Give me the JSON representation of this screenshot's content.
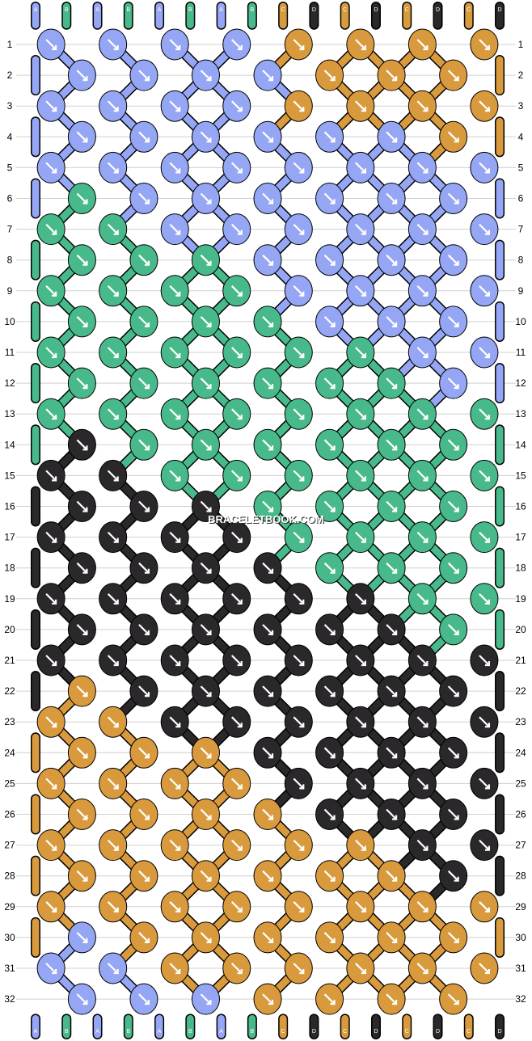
{
  "watermark": "BRACELETBOOK.COM",
  "colors": {
    "A": "#95a6f4",
    "B": "#48b98b",
    "C": "#d99a3e",
    "D": "#2a282a"
  },
  "strands": {
    "top": [
      "A",
      "B",
      "A",
      "B",
      "A",
      "B",
      "A",
      "B",
      "C",
      "D",
      "C",
      "D",
      "C",
      "D",
      "C",
      "D"
    ],
    "bottom": [
      "A",
      "B",
      "A",
      "B",
      "A",
      "B",
      "A",
      "B",
      "C",
      "D",
      "C",
      "D",
      "C",
      "D",
      "C",
      "D"
    ]
  },
  "row_numbers": [
    "1",
    "2",
    "3",
    "4",
    "5",
    "6",
    "7",
    "8",
    "9",
    "10",
    "11",
    "12",
    "13",
    "14",
    "15",
    "16",
    "17",
    "18",
    "19",
    "20",
    "21",
    "22",
    "23",
    "24",
    "25",
    "26",
    "27",
    "28",
    "29",
    "30",
    "31",
    "32"
  ],
  "knot_rows": [
    [
      "A",
      "A",
      "A",
      "A",
      "C",
      "C",
      "C",
      "C"
    ],
    [
      "A",
      "A",
      "A",
      "A",
      "C",
      "C",
      "C"
    ],
    [
      "A",
      "A",
      "A",
      "A",
      "C",
      "C",
      "C",
      "C"
    ],
    [
      "A",
      "A",
      "A",
      "A",
      "A",
      "A",
      "C"
    ],
    [
      "A",
      "A",
      "A",
      "A",
      "A",
      "A",
      "A",
      "A"
    ],
    [
      "B",
      "A",
      "A",
      "A",
      "A",
      "A",
      "A"
    ],
    [
      "B",
      "B",
      "A",
      "A",
      "A",
      "A",
      "A",
      "A"
    ],
    [
      "B",
      "B",
      "B",
      "A",
      "A",
      "A",
      "A"
    ],
    [
      "B",
      "B",
      "B",
      "B",
      "A",
      "A",
      "A",
      "A"
    ],
    [
      "B",
      "B",
      "B",
      "B",
      "A",
      "A",
      "A"
    ],
    [
      "B",
      "B",
      "B",
      "B",
      "B",
      "B",
      "A",
      "A"
    ],
    [
      "B",
      "B",
      "B",
      "B",
      "B",
      "B",
      "A"
    ],
    [
      "B",
      "B",
      "B",
      "B",
      "B",
      "B",
      "B",
      "B"
    ],
    [
      "D",
      "B",
      "B",
      "B",
      "B",
      "B",
      "B"
    ],
    [
      "D",
      "D",
      "B",
      "B",
      "B",
      "B",
      "B",
      "B"
    ],
    [
      "D",
      "D",
      "D",
      "B",
      "B",
      "B",
      "B"
    ],
    [
      "D",
      "D",
      "D",
      "D",
      "B",
      "B",
      "B",
      "B"
    ],
    [
      "D",
      "D",
      "D",
      "D",
      "B",
      "B",
      "B"
    ],
    [
      "D",
      "D",
      "D",
      "D",
      "D",
      "D",
      "B",
      "B"
    ],
    [
      "D",
      "D",
      "D",
      "D",
      "D",
      "D",
      "B"
    ],
    [
      "D",
      "D",
      "D",
      "D",
      "D",
      "D",
      "D",
      "D"
    ],
    [
      "C",
      "D",
      "D",
      "D",
      "D",
      "D",
      "D"
    ],
    [
      "C",
      "C",
      "D",
      "D",
      "D",
      "D",
      "D",
      "D"
    ],
    [
      "C",
      "C",
      "C",
      "D",
      "D",
      "D",
      "D"
    ],
    [
      "C",
      "C",
      "C",
      "C",
      "D",
      "D",
      "D",
      "D"
    ],
    [
      "C",
      "C",
      "C",
      "C",
      "D",
      "D",
      "D"
    ],
    [
      "C",
      "C",
      "C",
      "C",
      "C",
      "C",
      "D",
      "D"
    ],
    [
      "C",
      "C",
      "C",
      "C",
      "C",
      "C",
      "D"
    ],
    [
      "C",
      "C",
      "C",
      "C",
      "C",
      "C",
      "C",
      "C"
    ],
    [
      "A",
      "C",
      "C",
      "C",
      "C",
      "C",
      "C"
    ],
    [
      "A",
      "A",
      "C",
      "C",
      "C",
      "C",
      "C",
      "C"
    ],
    [
      "A",
      "A",
      "A",
      "C",
      "C",
      "C",
      "C"
    ]
  ]
}
